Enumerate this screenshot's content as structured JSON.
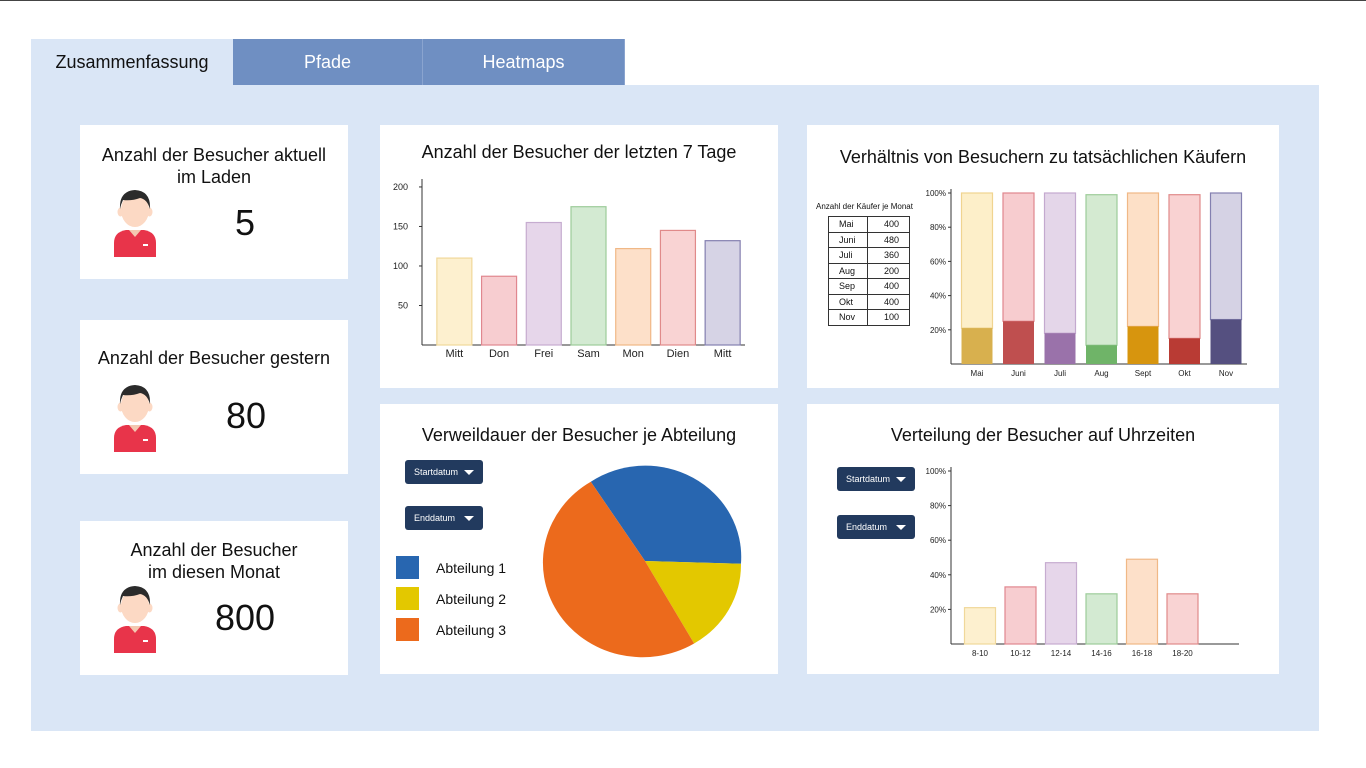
{
  "tabs": [
    {
      "label": "Zusammenfassung",
      "active": true
    },
    {
      "label": "Pfade",
      "active": false
    },
    {
      "label": "Heatmaps",
      "active": false
    }
  ],
  "kpis": [
    {
      "title_line1": "Anzahl der Besucher aktuell",
      "title_line2": "im Laden",
      "value": "5"
    },
    {
      "title_line1": "Anzahl der Besucher gestern",
      "title_line2": "",
      "value": "80"
    },
    {
      "title_line1": "Anzahl der Besucher",
      "title_line2": "im diesen Monat",
      "value": "800"
    }
  ],
  "colors": {
    "tab_inactive": "#6f8fc2",
    "panel_bg": "#dae6f6",
    "dropdown_bg": "#223a5e",
    "avatar_shirt": "#e8344a",
    "avatar_skin": "#fcd9c4",
    "avatar_hair": "#2b2b2b"
  },
  "charts": {
    "weekly": {
      "title": "Anzahl der Besucher der letzten 7 Tage",
      "chart_data": {
        "type": "bar",
        "categories": [
          "Mitt",
          "Don",
          "Frei",
          "Sam",
          "Mon",
          "Dien",
          "Mitt"
        ],
        "values": [
          110,
          87,
          155,
          175,
          122,
          145,
          132
        ],
        "yticks": [
          50,
          100,
          150,
          200
        ],
        "ylim": [
          0,
          205
        ],
        "fills": [
          "#fdf0cf",
          "#f7cdd0",
          "#e6d6ea",
          "#d3ead2",
          "#fde0c9",
          "#f9d3d3",
          "#d6d3e5"
        ],
        "strokes": [
          "#f0d89a",
          "#e0878f",
          "#c6acd0",
          "#9dcc9a",
          "#f0b886",
          "#e08a8a",
          "#8480b0"
        ]
      }
    },
    "ratio": {
      "title": "Verhältnis von Besuchern zu tatsächlichen Käufern",
      "table_title": "Anzahl der Käufer je Monat",
      "table_rows": [
        {
          "month": "Mai",
          "value": "400"
        },
        {
          "month": "Juni",
          "value": "480"
        },
        {
          "month": "Juli",
          "value": "360"
        },
        {
          "month": "Aug",
          "value": "200"
        },
        {
          "month": "Sep",
          "value": "400"
        },
        {
          "month": "Okt",
          "value": "400"
        },
        {
          "month": "Nov",
          "value": "100"
        }
      ],
      "chart_data": {
        "type": "bar",
        "stacked": true,
        "categories": [
          "Mai",
          "Juni",
          "Juli",
          "Aug",
          "Sept",
          "Okt",
          "Nov"
        ],
        "series": [
          {
            "values": [
              21,
              25,
              18,
              11,
              22,
              15,
              26
            ]
          },
          {
            "values": [
              79,
              75,
              82,
              88,
              78,
              84,
              74
            ]
          }
        ],
        "yticks": [
          "20%",
          "40%",
          "60%",
          "80%",
          "100%"
        ],
        "ylim": [
          0,
          100
        ],
        "base_colors": [
          "#d8b04e",
          "#bf4f4f",
          "#9a72aa",
          "#6fb468",
          "#d7950e",
          "#b93b34",
          "#555080"
        ],
        "top_fills": [
          "#fdefc9",
          "#f7cccf",
          "#e4d6e9",
          "#d4ead1",
          "#fde0c7",
          "#f9d2d2",
          "#d5d2e4"
        ],
        "top_strokes": [
          "#f0d490",
          "#e0878e",
          "#c4a9cf",
          "#9dcc9a",
          "#f0b886",
          "#e08a8a",
          "#8480b0"
        ]
      }
    },
    "dwell": {
      "title": "Verweildauer der Besucher je Abteilung",
      "dropdown_start": "Startdatum",
      "dropdown_end": "Enddatum",
      "chart_data": {
        "type": "pie",
        "labels": [
          "Abteilung 1",
          "Abteilung 2",
          "Abteilung 3"
        ],
        "values": [
          35,
          16,
          49
        ],
        "colors": [
          "#2866b0",
          "#e3c800",
          "#ec6a1c"
        ]
      }
    },
    "hours": {
      "title": "Verteilung der Besucher auf Uhrzeiten",
      "dropdown_start": "Startdatum",
      "dropdown_end": "Enddatum",
      "chart_data": {
        "type": "bar",
        "categories": [
          "8-10",
          "10-12",
          "12-14",
          "14-16",
          "16-18",
          "18-20"
        ],
        "values": [
          21,
          33,
          47,
          29,
          49,
          29
        ],
        "yticks": [
          "20%",
          "40%",
          "60%",
          "80%",
          "100%"
        ],
        "ylim": [
          0,
          100
        ],
        "fills": [
          "#fdf0cf",
          "#f7cdd0",
          "#e6d6ea",
          "#d3ead2",
          "#fde0c9",
          "#f9d3d3"
        ],
        "strokes": [
          "#f0d89a",
          "#e0878f",
          "#c6acd0",
          "#9dcc9a",
          "#f0b886",
          "#e08a8a"
        ]
      }
    }
  }
}
